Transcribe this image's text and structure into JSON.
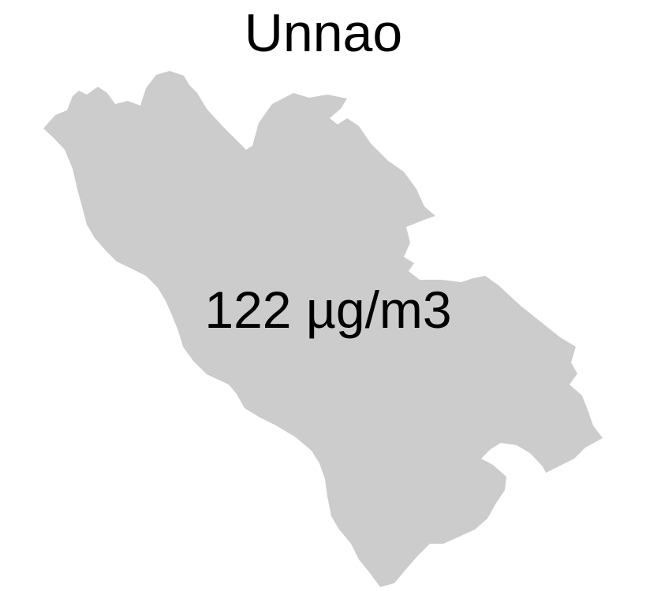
{
  "map": {
    "title": "Unnao",
    "value_label": "122 µg/m3",
    "region_fill": "#cccccc",
    "background": "#ffffff",
    "text_color": "#000000"
  }
}
